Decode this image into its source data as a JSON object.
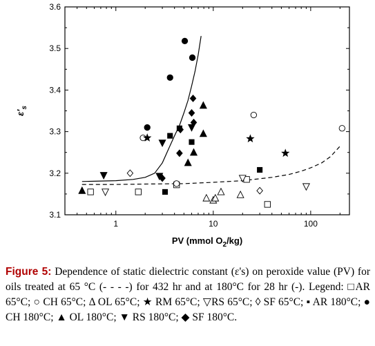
{
  "chart_data": {
    "type": "scatter",
    "xlabel": "PV (mmol O2/kg)",
    "xlabel_parts": {
      "main": "PV (mmol O",
      "sub": "2",
      "tail": "/kg)"
    },
    "ylabel": "ε's",
    "ylabel_parts": {
      "main": "ε",
      "prime": "'",
      "sub": "s"
    },
    "x_scale": "log",
    "xlim": [
      0.3,
      250
    ],
    "ylim": [
      3.1,
      3.6
    ],
    "x_ticks": [
      1,
      10,
      100
    ],
    "x_tick_labels": [
      "1",
      "10",
      "100"
    ],
    "y_ticks": [
      3.1,
      3.2,
      3.3,
      3.4,
      3.5,
      3.6
    ],
    "y_tick_labels": [
      "3.1",
      "3.2",
      "3.3",
      "3.4",
      "3.5",
      "3.6"
    ],
    "grid": false,
    "legend": "none",
    "series": [
      {
        "marker": "square-open",
        "points": [
          [
            0.55,
            3.155
          ],
          [
            1.7,
            3.155
          ],
          [
            4.2,
            3.172
          ],
          [
            22,
            3.185
          ],
          [
            36,
            3.125
          ]
        ]
      },
      {
        "marker": "circle-open",
        "points": [
          [
            1.9,
            3.285
          ],
          [
            4.2,
            3.175
          ],
          [
            26,
            3.34
          ],
          [
            210,
            3.308
          ]
        ]
      },
      {
        "marker": "triangle-open",
        "points": [
          [
            8.5,
            3.14
          ],
          [
            10,
            3.135
          ],
          [
            10.5,
            3.14
          ],
          [
            12,
            3.155
          ],
          [
            19,
            3.148
          ]
        ]
      },
      {
        "marker": "star",
        "points": [
          [
            2.1,
            3.285
          ],
          [
            24,
            3.283
          ],
          [
            55,
            3.248
          ]
        ]
      },
      {
        "marker": "triangle-down-open",
        "points": [
          [
            0.78,
            3.155
          ],
          [
            20,
            3.188
          ],
          [
            90,
            3.168
          ]
        ]
      },
      {
        "marker": "diamond-open",
        "points": [
          [
            1.4,
            3.2
          ],
          [
            30,
            3.158
          ]
        ]
      },
      {
        "marker": "square-filled",
        "points": [
          [
            3.2,
            3.155
          ],
          [
            3.6,
            3.29
          ],
          [
            4.5,
            3.308
          ],
          [
            6,
            3.275
          ],
          [
            30,
            3.208
          ]
        ]
      },
      {
        "marker": "circle-filled",
        "points": [
          [
            2.1,
            3.31
          ],
          [
            3.6,
            3.43
          ],
          [
            5.1,
            3.518
          ],
          [
            6.1,
            3.478
          ]
        ]
      },
      {
        "marker": "triangle-filled",
        "points": [
          [
            0.45,
            3.158
          ],
          [
            5.5,
            3.225
          ],
          [
            6.3,
            3.25
          ],
          [
            7.9,
            3.295
          ],
          [
            7.9,
            3.363
          ]
        ]
      },
      {
        "marker": "triangle-down-filled",
        "points": [
          [
            0.75,
            3.195
          ],
          [
            2.8,
            3.193
          ],
          [
            3,
            3.273
          ],
          [
            6,
            3.31
          ]
        ]
      },
      {
        "marker": "diamond-filled",
        "points": [
          [
            3,
            3.188
          ],
          [
            4.5,
            3.248
          ],
          [
            4.6,
            3.305
          ],
          [
            6,
            3.345
          ],
          [
            6.2,
            3.38
          ],
          [
            6.3,
            3.322
          ]
        ]
      }
    ],
    "fit_lines": [
      {
        "style": "solid",
        "points": [
          [
            0.45,
            3.18
          ],
          [
            1,
            3.182
          ],
          [
            1.5,
            3.185
          ],
          [
            2,
            3.19
          ],
          [
            2.5,
            3.2
          ],
          [
            3,
            3.225
          ],
          [
            3.5,
            3.26
          ],
          [
            4,
            3.29
          ],
          [
            4.5,
            3.315
          ],
          [
            5,
            3.345
          ],
          [
            5.5,
            3.375
          ],
          [
            6,
            3.41
          ],
          [
            6.5,
            3.445
          ],
          [
            7,
            3.485
          ],
          [
            7.5,
            3.53
          ]
        ]
      },
      {
        "style": "dashed",
        "points": [
          [
            0.45,
            3.173
          ],
          [
            1,
            3.173
          ],
          [
            2,
            3.174
          ],
          [
            5,
            3.175
          ],
          [
            10,
            3.178
          ],
          [
            20,
            3.182
          ],
          [
            40,
            3.19
          ],
          [
            60,
            3.197
          ],
          [
            80,
            3.205
          ],
          [
            100,
            3.213
          ],
          [
            130,
            3.225
          ],
          [
            160,
            3.24
          ],
          [
            200,
            3.265
          ]
        ]
      }
    ]
  },
  "caption": {
    "label": "Figure 5:",
    "text": "Dependence of static dielectric constant (ε's) on peroxide value (PV) for oils treated at 65 °C (- - - -) for 432 hr and at 180°C for 28 hr (-). Legend: □AR 65°C; ○ CH 65°C; Δ OL 65°C; ★ RM 65°C; ▽RS 65°C; ◊ SF 65°C; ▪ AR 180°C; ● CH 180°C; ▲ OL 180°C; ▼ RS 180°C; ◆ SF 180°C."
  }
}
